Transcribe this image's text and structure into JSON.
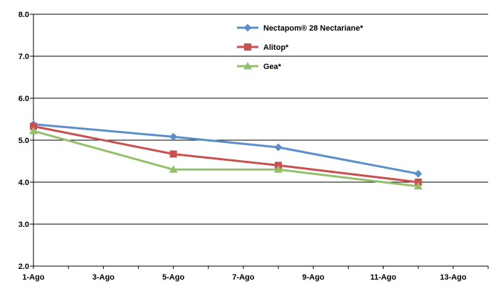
{
  "chart_data": {
    "type": "line",
    "title": "",
    "xlabel": "",
    "ylabel": "",
    "x_ticks": [
      "1-Ago",
      "3-Ago",
      "5-Ago",
      "7-Ago",
      "9-Ago",
      "11-Ago",
      "13-Ago"
    ],
    "y_ticks": [
      "2.0",
      "3.0",
      "4.0",
      "5.0",
      "6.0",
      "7.0",
      "8.0"
    ],
    "ylim": [
      2.0,
      8.0
    ],
    "xlim_days": [
      1,
      14
    ],
    "grid": "horizontal",
    "legend_position": "top-right",
    "series": [
      {
        "name": "Nectapom® 28 Nectariane*",
        "color": "#5b8fcc",
        "marker": "diamond",
        "points": [
          {
            "x": "1-Ago",
            "y": 5.38
          },
          {
            "x": "5-Ago",
            "y": 5.08
          },
          {
            "x": "8-Ago",
            "y": 4.83
          },
          {
            "x": "12-Ago",
            "y": 4.2
          }
        ]
      },
      {
        "name": "Alitop*",
        "color": "#c9504f",
        "marker": "square",
        "points": [
          {
            "x": "1-Ago",
            "y": 5.33
          },
          {
            "x": "5-Ago",
            "y": 4.67
          },
          {
            "x": "8-Ago",
            "y": 4.4
          },
          {
            "x": "12-Ago",
            "y": 4.0
          }
        ]
      },
      {
        "name": "Gea*",
        "color": "#93c06a",
        "marker": "triangle",
        "points": [
          {
            "x": "1-Ago",
            "y": 5.22
          },
          {
            "x": "5-Ago",
            "y": 4.3
          },
          {
            "x": "8-Ago",
            "y": 4.3
          },
          {
            "x": "12-Ago",
            "y": 3.9
          }
        ]
      }
    ]
  }
}
